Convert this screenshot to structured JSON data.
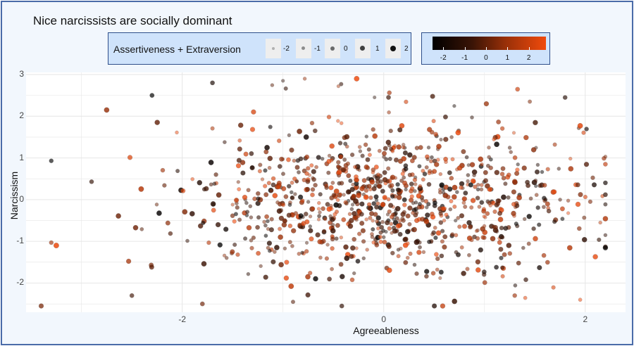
{
  "window": {
    "accent": "#4a6ba8",
    "background": "#f2f7fd"
  },
  "chart_data": {
    "type": "scatter",
    "title": "Nice narcissists are socially dominant",
    "xlabel": "Agreeableness",
    "ylabel": "Narcissism",
    "xlim": [
      -3.55,
      2.4
    ],
    "ylim": [
      -2.7,
      3.05
    ],
    "x_ticks": [
      "-2",
      "0",
      "2"
    ],
    "x_tick_values": [
      -2,
      0,
      2
    ],
    "y_ticks": [
      "3",
      "2",
      "1",
      "0",
      "-1",
      "-2"
    ],
    "y_tick_values": [
      3,
      2,
      1,
      0,
      -1,
      -2
    ],
    "grid": true,
    "legend_size": {
      "title": "Assertiveness + Extraversion",
      "labels": [
        "-2",
        "-1",
        "0",
        "1",
        "2"
      ],
      "values": [
        -2,
        -1,
        0,
        1,
        2
      ],
      "placement": "top"
    },
    "legend_color": {
      "labels": [
        "-2",
        "-1",
        "0",
        "1",
        "2"
      ],
      "values": [
        -2,
        -1,
        0,
        1,
        2
      ],
      "low_color": "#000000",
      "high_color": "#f04a0c",
      "placement": "top"
    },
    "n_points": 1000,
    "point_distribution": {
      "x_mean": 0.05,
      "x_sd": 0.95,
      "y_mean": 0.0,
      "y_sd": 0.95,
      "color_range": [
        -2.5,
        2.8
      ]
    },
    "notable_points": [
      {
        "x": -3.3,
        "y": 0.93
      },
      {
        "x": -3.3,
        "y": -1.03
      },
      {
        "x": -3.25,
        "y": -1.1
      },
      {
        "x": -2.9,
        "y": 0.43
      },
      {
        "x": -2.75,
        "y": 2.15
      },
      {
        "x": -2.3,
        "y": 2.5
      },
      {
        "x": -1.7,
        "y": 2.8
      },
      {
        "x": -1.0,
        "y": 2.85
      },
      {
        "x": -0.45,
        "y": 2.72
      },
      {
        "x": -0.9,
        "y": -2.45
      },
      {
        "x": -1.8,
        "y": -2.5
      },
      {
        "x": -2.5,
        "y": -2.3
      },
      {
        "x": 1.3,
        "y": -2.3
      },
      {
        "x": 1.95,
        "y": -2.4
      },
      {
        "x": 2.1,
        "y": -1.37
      },
      {
        "x": 2.15,
        "y": -0.55
      },
      {
        "x": 2.05,
        "y": -0.05
      },
      {
        "x": 1.95,
        "y": 1.77
      },
      {
        "x": 1.8,
        "y": 2.45
      },
      {
        "x": 1.45,
        "y": 2.35
      }
    ]
  }
}
